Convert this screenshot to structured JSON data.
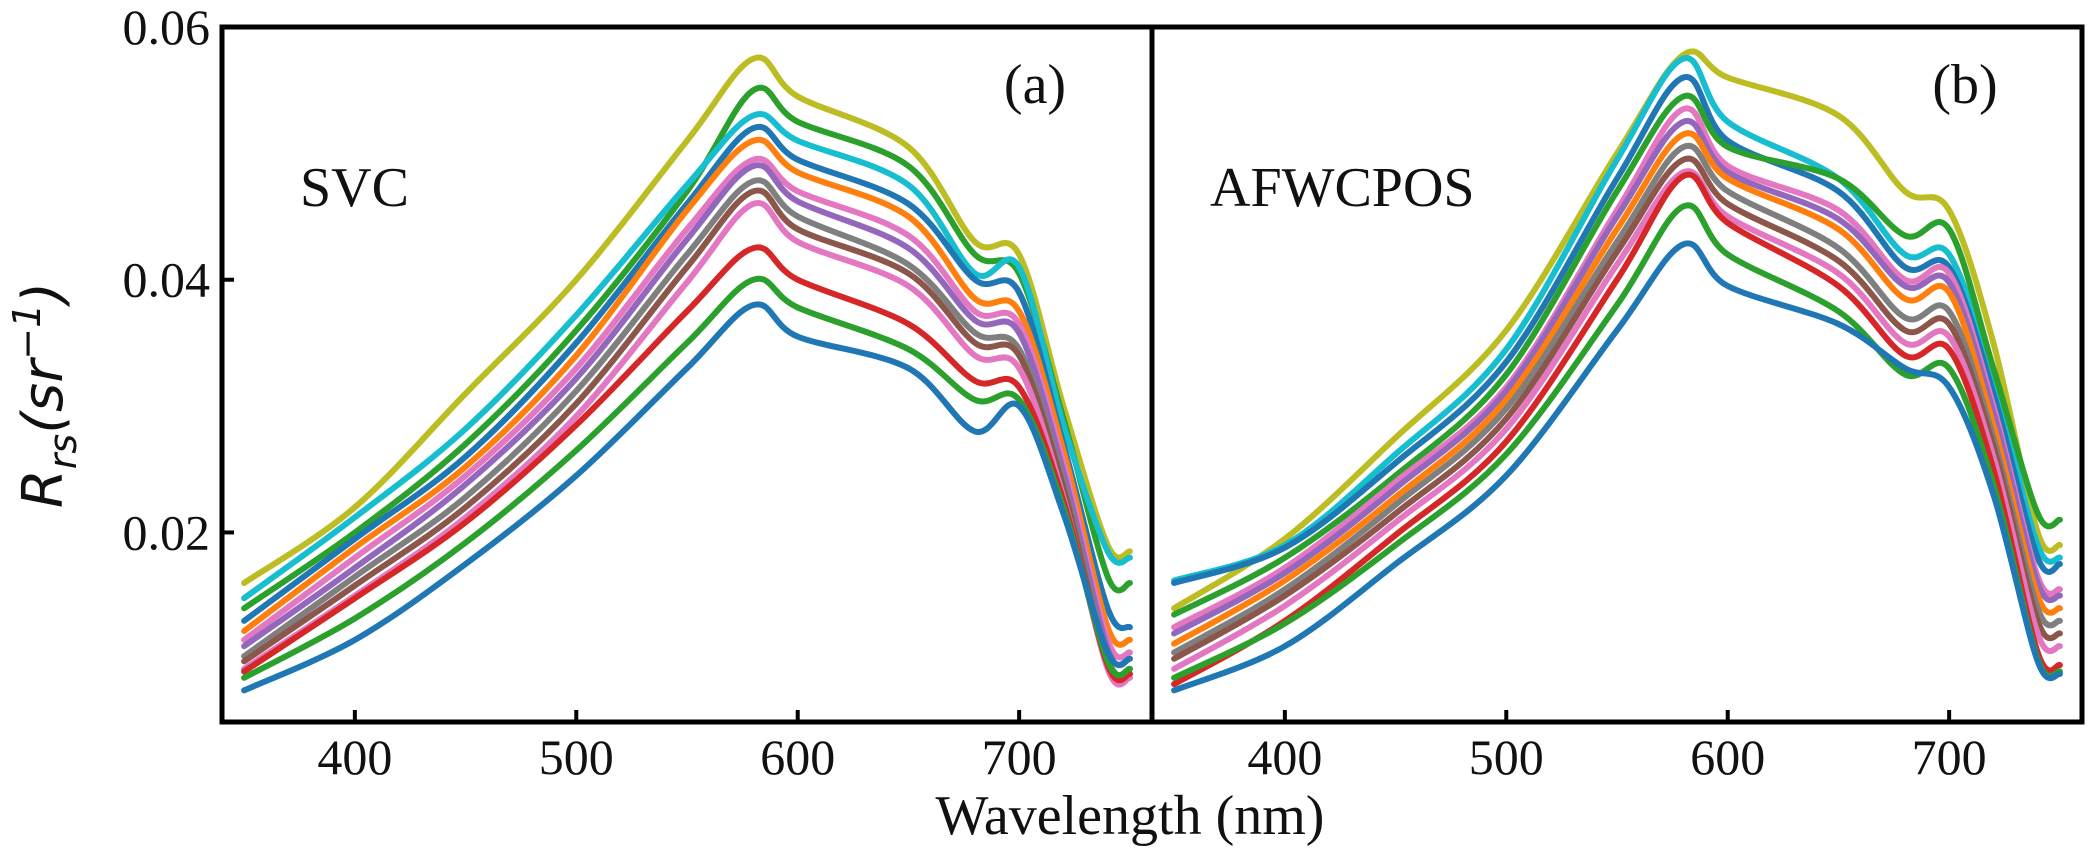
{
  "chart_data": [
    {
      "type": "line",
      "panel_label": "(a)",
      "annotation": "SVC",
      "xlim": [
        340,
        760
      ],
      "ylim": [
        0.005,
        0.06
      ],
      "xticks": [
        "400",
        "500",
        "600",
        "700"
      ],
      "xtick_values": [
        400,
        500,
        600,
        700
      ],
      "yticks": [
        "0.02",
        "0.04",
        "0.06"
      ],
      "ytick_values": [
        0.02,
        0.04,
        0.06
      ],
      "x": [
        350,
        400,
        450,
        500,
        550,
        580,
        600,
        650,
        680,
        700,
        720,
        740,
        750
      ],
      "series": [
        {
          "name": "s1",
          "color": "#bcbd22",
          "values": [
            0.016,
            0.022,
            0.031,
            0.04,
            0.051,
            0.0575,
            0.0545,
            0.0505,
            0.043,
            0.042,
            0.03,
            0.019,
            0.0185
          ]
        },
        {
          "name": "s2",
          "color": "#2ca02c",
          "values": [
            0.014,
            0.02,
            0.027,
            0.036,
            0.047,
            0.055,
            0.0525,
            0.049,
            0.042,
            0.0405,
            0.029,
            0.0165,
            0.016
          ]
        },
        {
          "name": "s3",
          "color": "#17becf",
          "values": [
            0.0148,
            0.0212,
            0.0282,
            0.0372,
            0.0475,
            0.053,
            0.051,
            0.0475,
            0.0405,
            0.041,
            0.0285,
            0.0185,
            0.018
          ]
        },
        {
          "name": "s4",
          "color": "#1f77b4",
          "values": [
            0.013,
            0.0195,
            0.026,
            0.035,
            0.046,
            0.052,
            0.0495,
            0.046,
            0.04,
            0.039,
            0.027,
            0.014,
            0.0125
          ]
        },
        {
          "name": "s5",
          "color": "#ff7f0e",
          "values": [
            0.0122,
            0.0188,
            0.0252,
            0.034,
            0.0455,
            0.051,
            0.0485,
            0.045,
            0.0385,
            0.0375,
            0.0265,
            0.0125,
            0.0115
          ]
        },
        {
          "name": "s6",
          "color": "#e377c2",
          "values": [
            0.0115,
            0.018,
            0.0245,
            0.033,
            0.044,
            0.0495,
            0.047,
            0.0435,
            0.0375,
            0.0365,
            0.0255,
            0.0115,
            0.0105
          ]
        },
        {
          "name": "s7",
          "color": "#9467bd",
          "values": [
            0.011,
            0.0172,
            0.0238,
            0.0322,
            0.0432,
            0.049,
            0.0462,
            0.0425,
            0.0368,
            0.0358,
            0.0248,
            0.0108,
            0.01
          ]
        },
        {
          "name": "s8",
          "color": "#7f7f7f",
          "values": [
            0.0102,
            0.0165,
            0.0228,
            0.0312,
            0.042,
            0.0478,
            0.045,
            0.0412,
            0.0358,
            0.0345,
            0.024,
            0.01,
            0.0092
          ]
        },
        {
          "name": "s9",
          "color": "#8c564b",
          "values": [
            0.0098,
            0.0158,
            0.022,
            0.0302,
            0.041,
            0.047,
            0.044,
            0.0405,
            0.035,
            0.034,
            0.0235,
            0.0095,
            0.0088
          ]
        },
        {
          "name": "s10",
          "color": "#e377c2",
          "values": [
            0.0092,
            0.015,
            0.0212,
            0.0292,
            0.0398,
            0.046,
            0.043,
            0.0395,
            0.034,
            0.033,
            0.0228,
            0.0092,
            0.0085
          ]
        },
        {
          "name": "s11",
          "color": "#d62728",
          "values": [
            0.009,
            0.0148,
            0.0208,
            0.0285,
            0.0375,
            0.0425,
            0.04,
            0.0365,
            0.032,
            0.0315,
            0.0225,
            0.0095,
            0.0088
          ]
        },
        {
          "name": "s12",
          "color": "#2ca02c",
          "values": [
            0.0085,
            0.0132,
            0.0192,
            0.0265,
            0.035,
            0.04,
            0.0378,
            0.0345,
            0.0305,
            0.0305,
            0.022,
            0.0098,
            0.0092
          ]
        },
        {
          "name": "s13",
          "color": "#1f77b4",
          "values": [
            0.0075,
            0.0115,
            0.0175,
            0.0245,
            0.033,
            0.038,
            0.0355,
            0.033,
            0.028,
            0.03,
            0.0215,
            0.0105,
            0.01
          ]
        }
      ]
    },
    {
      "type": "line",
      "panel_label": "(b)",
      "annotation": "AFWCPOS",
      "xlim": [
        340,
        760
      ],
      "ylim": [
        0.005,
        0.06
      ],
      "xticks": [
        "400",
        "500",
        "600",
        "700"
      ],
      "xtick_values": [
        400,
        500,
        600,
        700
      ],
      "x": [
        350,
        400,
        450,
        500,
        550,
        580,
        600,
        650,
        680,
        700,
        720,
        740,
        750
      ],
      "series": [
        {
          "name": "s1",
          "color": "#bcbd22",
          "values": [
            0.014,
            0.0195,
            0.0275,
            0.036,
            0.05,
            0.0578,
            0.056,
            0.053,
            0.047,
            0.0455,
            0.035,
            0.02,
            0.019
          ]
        },
        {
          "name": "s2",
          "color": "#17becf",
          "values": [
            0.0162,
            0.019,
            0.0262,
            0.0345,
            0.0495,
            0.0575,
            0.0525,
            0.048,
            0.042,
            0.042,
            0.032,
            0.019,
            0.018
          ]
        },
        {
          "name": "s3",
          "color": "#1f77b4",
          "values": [
            0.016,
            0.0188,
            0.0255,
            0.0335,
            0.048,
            0.056,
            0.051,
            0.047,
            0.041,
            0.041,
            0.031,
            0.018,
            0.0175
          ]
        },
        {
          "name": "s4",
          "color": "#2ca02c",
          "values": [
            0.0135,
            0.018,
            0.0245,
            0.0325,
            0.047,
            0.0545,
            0.0505,
            0.048,
            0.0435,
            0.044,
            0.033,
            0.0215,
            0.021
          ]
        },
        {
          "name": "s5",
          "color": "#e377c2",
          "values": [
            0.0125,
            0.0172,
            0.024,
            0.0315,
            0.0455,
            0.0535,
            0.049,
            0.0455,
            0.04,
            0.0405,
            0.03,
            0.0165,
            0.0155
          ]
        },
        {
          "name": "s6",
          "color": "#9467bd",
          "values": [
            0.012,
            0.0168,
            0.0235,
            0.0312,
            0.045,
            0.0525,
            0.0485,
            0.0448,
            0.0395,
            0.0398,
            0.0295,
            0.016,
            0.015
          ]
        },
        {
          "name": "s7",
          "color": "#ff7f0e",
          "values": [
            0.0112,
            0.0162,
            0.0228,
            0.0305,
            0.044,
            0.0515,
            0.048,
            0.044,
            0.0385,
            0.039,
            0.0285,
            0.015,
            0.014
          ]
        },
        {
          "name": "s8",
          "color": "#7f7f7f",
          "values": [
            0.0105,
            0.0155,
            0.0222,
            0.0298,
            0.043,
            0.0505,
            0.047,
            0.0425,
            0.037,
            0.0375,
            0.0275,
            0.014,
            0.013
          ]
        },
        {
          "name": "s9",
          "color": "#8c564b",
          "values": [
            0.01,
            0.015,
            0.0215,
            0.029,
            0.0422,
            0.0495,
            0.046,
            0.0415,
            0.036,
            0.0365,
            0.0268,
            0.013,
            0.012
          ]
        },
        {
          "name": "s10",
          "color": "#e377c2",
          "values": [
            0.0092,
            0.0142,
            0.0208,
            0.0282,
            0.0412,
            0.0485,
            0.045,
            0.0405,
            0.035,
            0.0355,
            0.026,
            0.012,
            0.011
          ]
        },
        {
          "name": "s11",
          "color": "#d62728",
          "values": [
            0.008,
            0.013,
            0.0198,
            0.0272,
            0.04,
            0.0482,
            0.0445,
            0.0395,
            0.034,
            0.0345,
            0.025,
            0.0105,
            0.0095
          ]
        },
        {
          "name": "s12",
          "color": "#2ca02c",
          "values": [
            0.0085,
            0.0128,
            0.019,
            0.0262,
            0.038,
            0.0458,
            0.042,
            0.0375,
            0.0325,
            0.033,
            0.0238,
            0.01,
            0.009
          ]
        },
        {
          "name": "s13",
          "color": "#1f77b4",
          "values": [
            0.0075,
            0.011,
            0.0175,
            0.0245,
            0.036,
            0.0428,
            0.0395,
            0.0365,
            0.033,
            0.0315,
            0.023,
            0.0098,
            0.0088
          ]
        }
      ]
    }
  ],
  "axes": {
    "ylabel_main": "R",
    "ylabel_sub": "rs",
    "ylabel_open": "(sr",
    "ylabel_sup": "−1",
    "ylabel_close": ")",
    "xlabel": "Wavelength (nm)"
  }
}
